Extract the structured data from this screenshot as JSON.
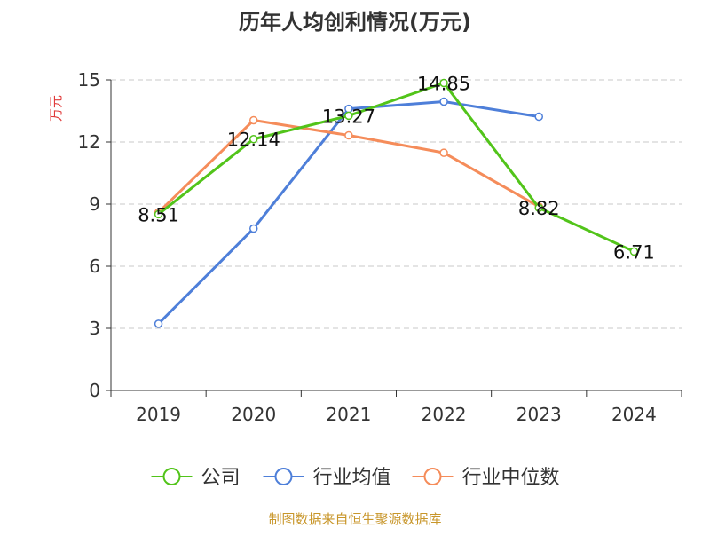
{
  "chart_data": {
    "type": "line",
    "title": "历年人均创利情况(万元)",
    "ylabel": "万元",
    "categories": [
      "2019",
      "2020",
      "2021",
      "2022",
      "2023",
      "2024"
    ],
    "ylim": [
      0,
      15
    ],
    "yticks": [
      0,
      3,
      6,
      9,
      12,
      15
    ],
    "grid": true,
    "legend_position": "bottom",
    "series": [
      {
        "name": "公司",
        "color": "#52c41a",
        "values": [
          8.51,
          12.14,
          13.27,
          14.85,
          8.82,
          6.71
        ],
        "labels": [
          "8.51",
          "12.14",
          "13.27",
          "14.85",
          "8.82",
          "6.71"
        ]
      },
      {
        "name": "行业均值",
        "color": "#4e7fd9",
        "values": [
          3.22,
          7.82,
          13.6,
          13.95,
          13.22,
          null
        ]
      },
      {
        "name": "行业中位数",
        "color": "#f58c5a",
        "values": [
          8.6,
          13.05,
          12.32,
          11.48,
          8.88,
          null
        ]
      }
    ]
  },
  "colors": {
    "title": "#333333",
    "ylabel": "#e03a3a",
    "axis": "#333333",
    "grid": "#c8c8c8",
    "source": "#c8962a"
  },
  "source": "制图数据来自恒生聚源数据库"
}
